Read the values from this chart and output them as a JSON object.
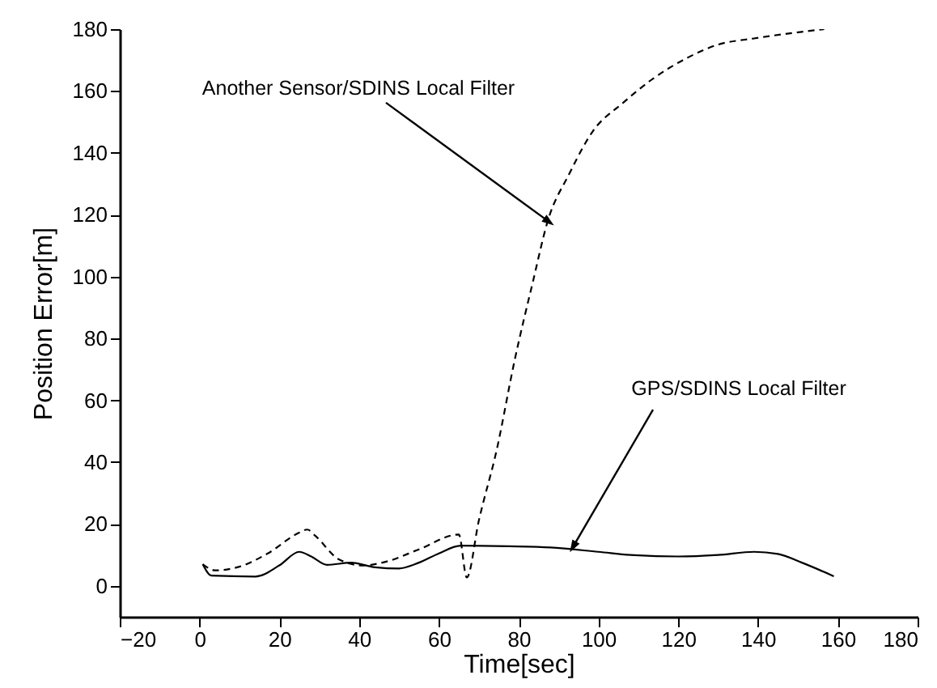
{
  "chart_data": {
    "type": "line",
    "xlabel": "Time[sec]",
    "ylabel": "Position Error[m]",
    "xlim": [
      -20,
      180
    ],
    "xticks": [
      -20,
      0,
      20,
      40,
      60,
      80,
      100,
      120,
      140,
      160,
      180
    ],
    "ylim": [
      -10,
      180
    ],
    "yticks": [
      0,
      20,
      40,
      60,
      80,
      100,
      120,
      140,
      160,
      180
    ],
    "series": [
      {
        "color": "#000000",
        "line_style": "dashed",
        "x": [
          0.8,
          4,
          10,
          17,
          25,
          27,
          29,
          35,
          41,
          47,
          55,
          65,
          67,
          70,
          74.5,
          79,
          83.6,
          87.3,
          92.6,
          98.6,
          106,
          113.7,
          122.7,
          130,
          139,
          156.6
        ],
        "values": [
          7,
          5,
          6.2,
          10.4,
          17.2,
          18.2,
          16.2,
          8.5,
          6.6,
          7.9,
          11.8,
          16.6,
          2.7,
          21,
          44,
          73,
          98.5,
          118,
          133,
          147,
          156,
          164,
          171,
          175,
          177,
          180
        ]
      },
      {
        "color": "#000000",
        "line_style": "solid",
        "x": [
          0.8,
          3,
          14,
          20,
          25,
          28,
          32,
          38,
          44,
          50,
          55,
          60,
          65.5,
          77.5,
          88,
          100,
          109,
          120,
          130,
          139,
          145,
          151,
          159
        ],
        "values": [
          7,
          3.3,
          3,
          6.6,
          11,
          9.5,
          6.8,
          7.5,
          6,
          5.6,
          7.5,
          10.5,
          13,
          12.8,
          12.4,
          11,
          9.9,
          9.5,
          10,
          11,
          10.3,
          7.5,
          3.1
        ]
      }
    ],
    "annotations": [
      {
        "text": "Another Sensor/SDINS Local Filter",
        "x": 87.3,
        "y": 118
      },
      {
        "text": "GPS/SDINS Local Filter",
        "x": 93.8,
        "y": 13
      }
    ]
  }
}
